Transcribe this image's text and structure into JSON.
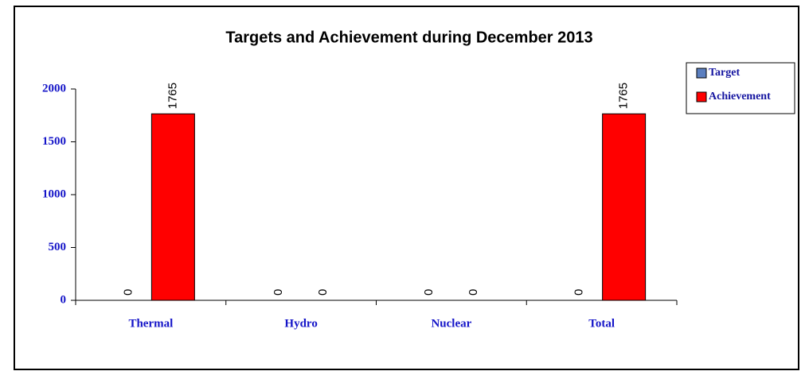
{
  "chart_data": {
    "type": "bar",
    "title": "Targets and Achievement during December 2013",
    "categories": [
      "Thermal",
      "Hydro",
      "Nuclear",
      "Total"
    ],
    "series": [
      {
        "name": "Target",
        "color": "#5b7fbf",
        "values": [
          0,
          0,
          0,
          0
        ]
      },
      {
        "name": "Achievement",
        "color": "#ff0000",
        "values": [
          1765,
          0,
          0,
          1765
        ]
      }
    ],
    "ylim": [
      0,
      2000
    ],
    "yticks": [
      0,
      500,
      1000,
      1500,
      2000
    ],
    "grid": false,
    "legend": "right"
  }
}
